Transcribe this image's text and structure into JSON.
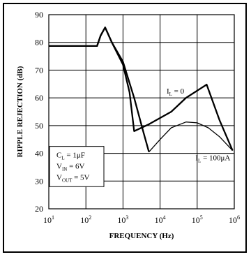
{
  "chart_data": {
    "type": "line",
    "title": "",
    "xlabel": "FREQUENCY (Hz)",
    "ylabel": "RIPPLE REJECTION (dB)",
    "xscale": "log",
    "xlim": [
      10,
      1000000
    ],
    "ylim": [
      20,
      90
    ],
    "x_ticks": [
      {
        "base": "10",
        "exp": "1",
        "value": 10
      },
      {
        "base": "10",
        "exp": "2",
        "value": 100
      },
      {
        "base": "10",
        "exp": "3",
        "value": 1000
      },
      {
        "base": "10",
        "exp": "4",
        "value": 10000
      },
      {
        "base": "10",
        "exp": "5",
        "value": 100000
      },
      {
        "base": "10",
        "exp": "6",
        "value": 1000000
      }
    ],
    "y_ticks": [
      20,
      30,
      40,
      50,
      60,
      70,
      80,
      90
    ],
    "grid": true,
    "series": [
      {
        "label_main": "I",
        "label_sub": "L",
        "label_rest": " = 0",
        "label_at": [
          15000,
          61.5
        ],
        "stroke_width": 2.3,
        "points": [
          [
            10,
            78.7
          ],
          [
            200,
            78.7
          ],
          [
            250,
            82.5
          ],
          [
            330,
            85.4
          ],
          [
            500,
            80
          ],
          [
            1000,
            72
          ],
          [
            1500,
            62
          ],
          [
            2000,
            48
          ],
          [
            5000,
            50.5
          ],
          [
            20000,
            55
          ],
          [
            50000,
            60
          ],
          [
            180000,
            64.8
          ],
          [
            400000,
            52
          ],
          [
            900000,
            41
          ]
        ]
      },
      {
        "label_main": "I",
        "label_sub": "L",
        "label_rest": " = 100μA",
        "label_at": [
          90000,
          37.5
        ],
        "stroke_width": 2.3,
        "points": [
          [
            10,
            78.7
          ],
          [
            200,
            78.7
          ],
          [
            250,
            82.5
          ],
          [
            330,
            85.4
          ],
          [
            500,
            80
          ],
          [
            1000,
            73
          ],
          [
            2000,
            60
          ],
          [
            3500,
            48
          ],
          [
            5000,
            40.5
          ]
        ]
      },
      {
        "label_main": "",
        "label_sub": "",
        "label_rest": "",
        "stroke_width": 1.3,
        "points": [
          [
            5000,
            40.5
          ],
          [
            10000,
            45
          ],
          [
            20000,
            49.2
          ],
          [
            50000,
            51.3
          ],
          [
            100000,
            51.0
          ],
          [
            200000,
            49.2
          ],
          [
            400000,
            46
          ],
          [
            900000,
            41
          ]
        ]
      }
    ],
    "conditions": [
      {
        "main": "C",
        "sub": "L",
        "rest": " = 1μF"
      },
      {
        "main": "V",
        "sub": "IN",
        "rest": " = 6V"
      },
      {
        "main": "V",
        "sub": "OUT",
        "rest": " = 5V"
      }
    ]
  }
}
